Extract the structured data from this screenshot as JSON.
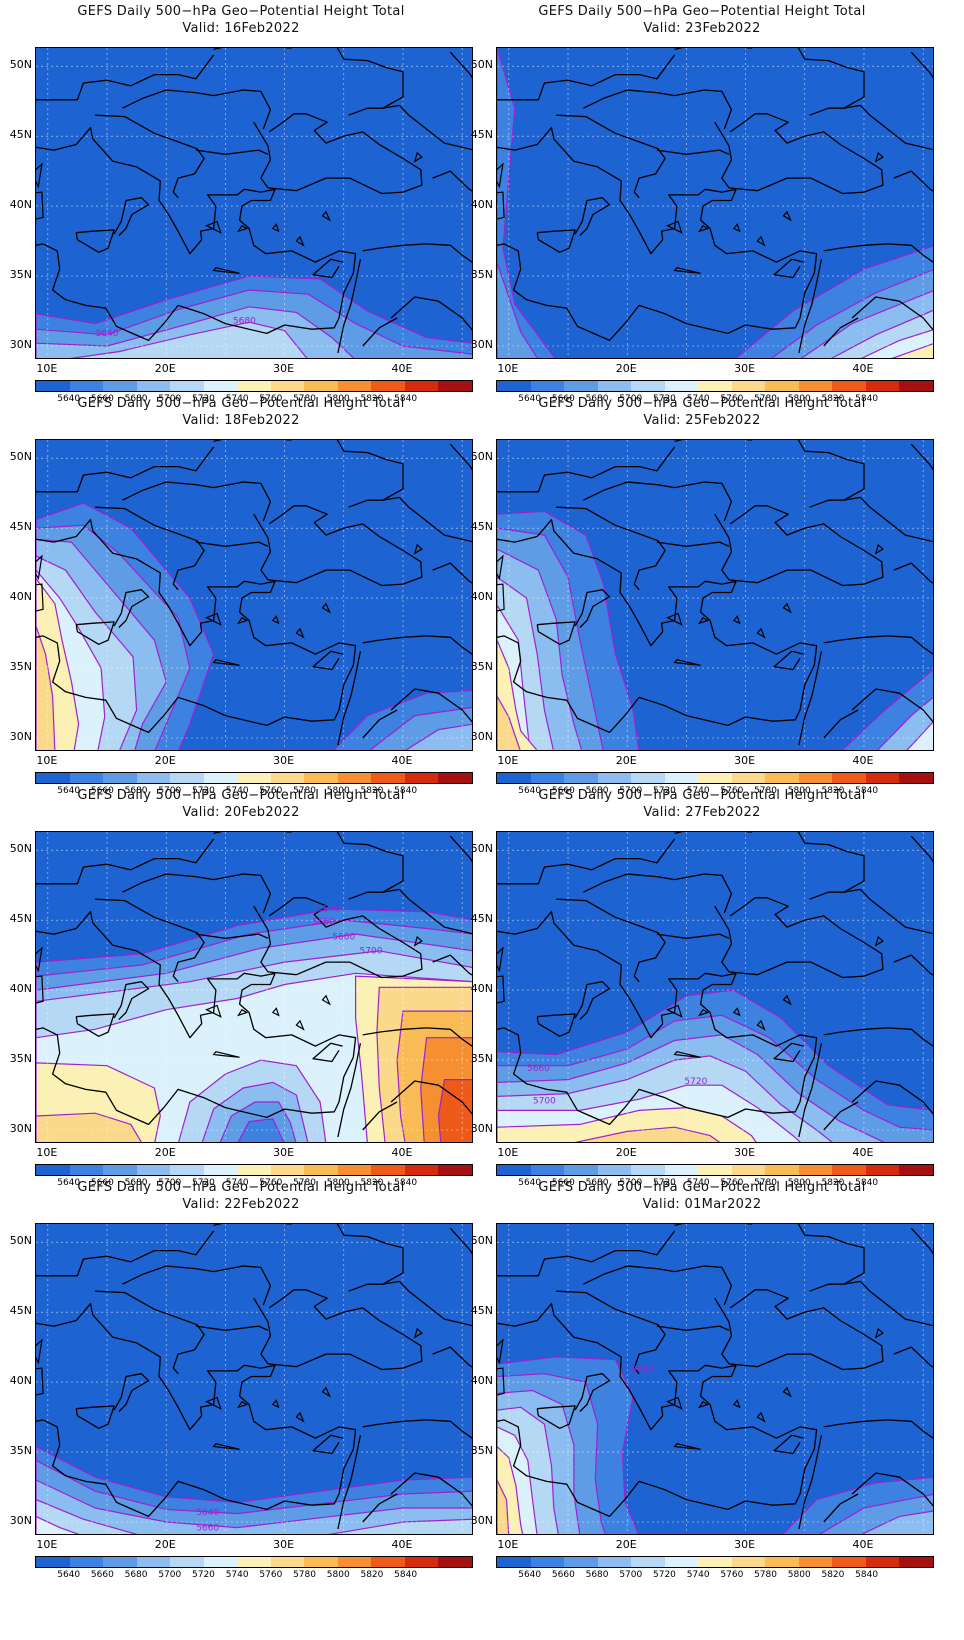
{
  "panels": [
    {
      "title": "GEFS Daily 500−hPa Geo−Potential Height Total",
      "valid": "Valid: 16Feb2022",
      "contour_labels": [
        "5640",
        "5680"
      ]
    },
    {
      "title": "GEFS Daily 500−hPa Geo−Potential Height Total",
      "valid": "Valid: 23Feb2022",
      "contour_labels": []
    },
    {
      "title": "GEFS Daily 500−hPa Geo−Potential Height Total",
      "valid": "Valid: 18Feb2022",
      "contour_labels": []
    },
    {
      "title": "GEFS Daily 500−hPa Geo−Potential Height Total",
      "valid": "Valid: 25Feb2022",
      "contour_labels": []
    },
    {
      "title": "GEFS Daily 500−hPa Geo−Potential Height Total",
      "valid": "Valid: 20Feb2022",
      "contour_labels": [
        "5640",
        "5660",
        "5680",
        "5700"
      ]
    },
    {
      "title": "GEFS Daily 500−hPa Geo−Potential Height Total",
      "valid": "Valid: 27Feb2022",
      "contour_labels": [
        "5660",
        "5700",
        "5720"
      ]
    },
    {
      "title": "GEFS Daily 500−hPa Geo−Potential Height Total",
      "valid": "Valid: 22Feb2022",
      "contour_labels": [
        "5640",
        "5660"
      ]
    },
    {
      "title": "GEFS Daily 500−hPa Geo−Potential Height Total",
      "valid": "Valid: 01Mar2022",
      "contour_labels": [
        "5640"
      ]
    }
  ],
  "axes": {
    "lat_labels": [
      "50N",
      "45N",
      "40N",
      "35N",
      "30N"
    ],
    "lon_labels": [
      "10E",
      "20E",
      "30E",
      "40E"
    ]
  },
  "colorbar": {
    "labels": [
      "5640",
      "5660",
      "5680",
      "5700",
      "5720",
      "5740",
      "5760",
      "5780",
      "5800",
      "5820",
      "5840"
    ],
    "colors": [
      "#1e63d2",
      "#3d82e0",
      "#5e9ce6",
      "#8cbdf0",
      "#b5d8f5",
      "#dbf1fb",
      "#fbf1b4",
      "#fad98a",
      "#f8bb55",
      "#f58f31",
      "#ee5a1a",
      "#d42a0e",
      "#a50f0f"
    ]
  },
  "colors": {
    "contour": "#a020d0",
    "coast": "#000000",
    "grid": "#ffffff"
  }
}
